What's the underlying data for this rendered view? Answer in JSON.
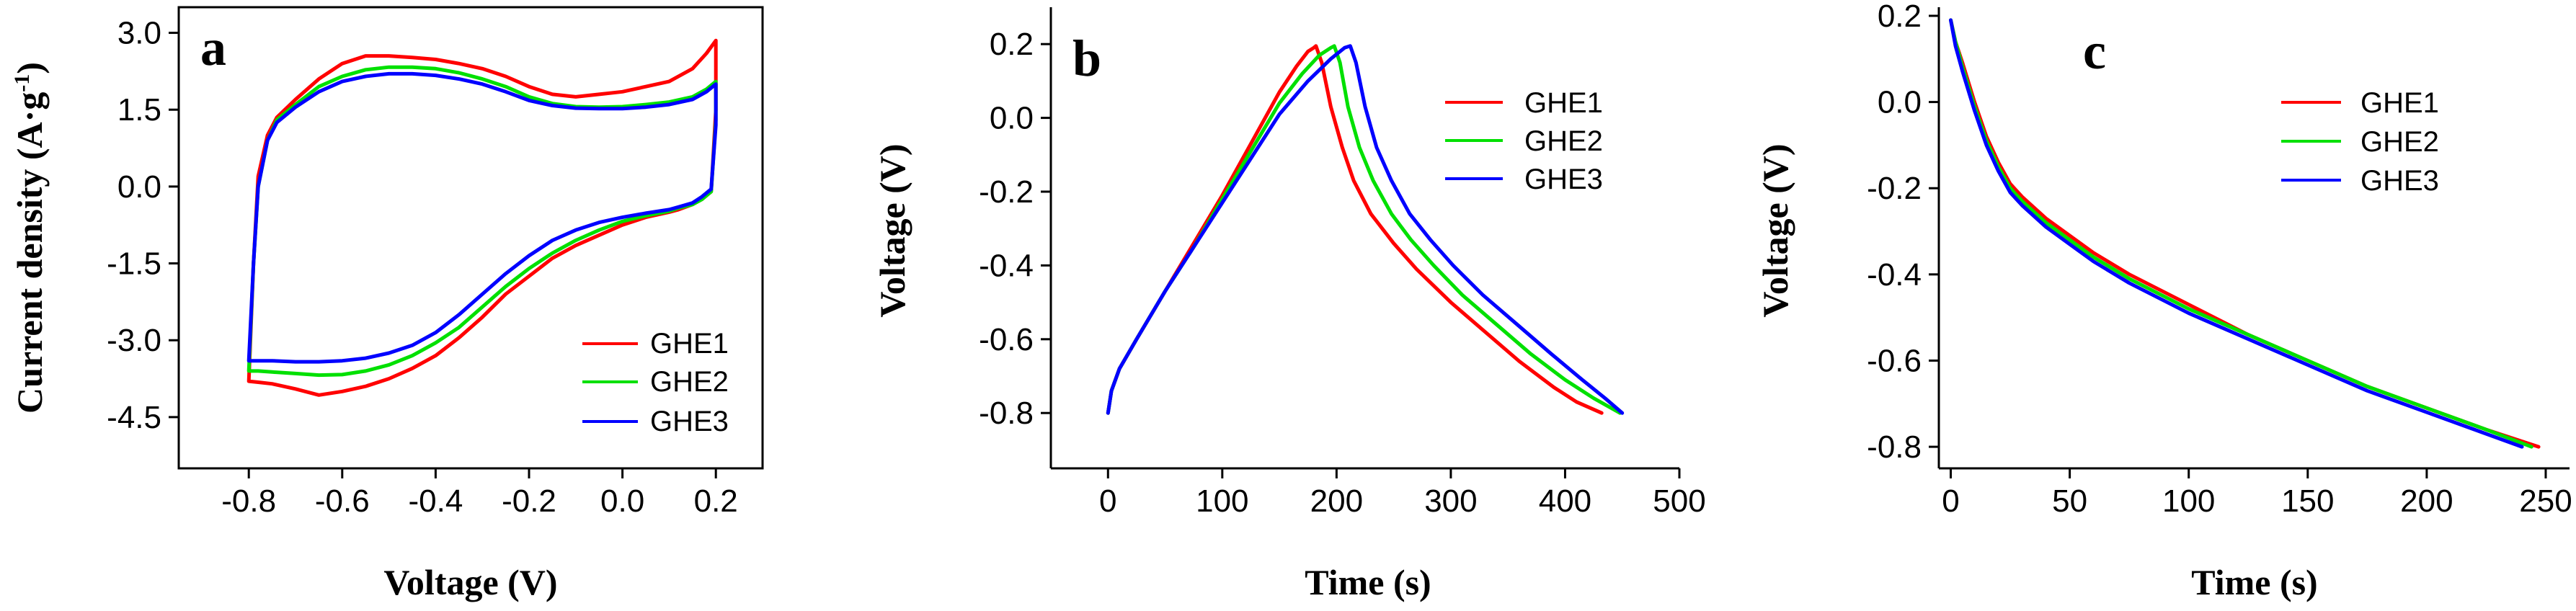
{
  "colors": {
    "GHE1": "#ff0000",
    "GHE2": "#00e000",
    "GHE3": "#0000ff",
    "axis": "#000000"
  },
  "chart_data": [
    {
      "id": "a",
      "type": "line",
      "panel_label": "a",
      "xlabel": "Voltage (V)",
      "ylabel_main": "Current density (A·g",
      "ylabel_sup": "-1",
      "ylabel_close": ")",
      "xlim": [
        -0.95,
        0.3
      ],
      "ylim": [
        -5.5,
        3.5
      ],
      "xticks": [
        -0.8,
        -0.6,
        -0.4,
        -0.2,
        0.0,
        0.2
      ],
      "xtick_labels": [
        "-0.8",
        "-0.6",
        "-0.4",
        "-0.2",
        "0.0",
        "0.2"
      ],
      "yticks": [
        3.0,
        1.5,
        0.0,
        -1.5,
        -3.0,
        -4.5
      ],
      "ytick_labels": [
        "3.0",
        "1.5",
        "0.0",
        "-1.5",
        "-3.0",
        "-4.5"
      ],
      "legend": [
        "GHE1",
        "GHE2",
        "GHE3"
      ],
      "legend_position": "bottom-right",
      "series": [
        {
          "name": "GHE1",
          "closed": true,
          "x": [
            -0.8,
            -0.79,
            -0.78,
            -0.76,
            -0.74,
            -0.7,
            -0.65,
            -0.6,
            -0.55,
            -0.5,
            -0.45,
            -0.4,
            -0.35,
            -0.3,
            -0.25,
            -0.2,
            -0.15,
            -0.1,
            -0.05,
            0.0,
            0.05,
            0.1,
            0.15,
            0.18,
            0.2,
            0.2,
            0.19,
            0.17,
            0.15,
            0.12,
            0.1,
            0.05,
            0.0,
            -0.05,
            -0.1,
            -0.15,
            -0.2,
            -0.25,
            -0.3,
            -0.35,
            -0.4,
            -0.45,
            -0.5,
            -0.55,
            -0.6,
            -0.65,
            -0.7,
            -0.75,
            -0.78,
            -0.8
          ],
          "y": [
            -3.8,
            -1.5,
            0.2,
            1.0,
            1.35,
            1.7,
            2.1,
            2.4,
            2.55,
            2.55,
            2.52,
            2.48,
            2.4,
            2.3,
            2.15,
            1.95,
            1.8,
            1.75,
            1.8,
            1.85,
            1.95,
            2.05,
            2.3,
            2.6,
            2.85,
            1.5,
            -0.1,
            -0.25,
            -0.35,
            -0.45,
            -0.5,
            -0.6,
            -0.75,
            -0.95,
            -1.15,
            -1.4,
            -1.75,
            -2.1,
            -2.55,
            -2.95,
            -3.3,
            -3.55,
            -3.75,
            -3.9,
            -4.0,
            -4.07,
            -3.95,
            -3.85,
            -3.82,
            -3.8
          ]
        },
        {
          "name": "GHE2",
          "closed": true,
          "x": [
            -0.8,
            -0.79,
            -0.78,
            -0.76,
            -0.74,
            -0.7,
            -0.65,
            -0.6,
            -0.55,
            -0.5,
            -0.45,
            -0.4,
            -0.35,
            -0.3,
            -0.25,
            -0.2,
            -0.15,
            -0.1,
            -0.05,
            0.0,
            0.05,
            0.1,
            0.15,
            0.18,
            0.2,
            0.2,
            0.19,
            0.17,
            0.15,
            0.12,
            0.1,
            0.05,
            0.0,
            -0.05,
            -0.1,
            -0.15,
            -0.2,
            -0.25,
            -0.3,
            -0.35,
            -0.4,
            -0.45,
            -0.5,
            -0.55,
            -0.6,
            -0.65,
            -0.7,
            -0.75,
            -0.78,
            -0.8
          ],
          "y": [
            -3.6,
            -1.5,
            0.0,
            0.9,
            1.3,
            1.6,
            1.95,
            2.15,
            2.28,
            2.33,
            2.33,
            2.3,
            2.22,
            2.1,
            1.95,
            1.75,
            1.62,
            1.56,
            1.55,
            1.56,
            1.6,
            1.65,
            1.75,
            1.9,
            2.05,
            1.3,
            -0.1,
            -0.25,
            -0.35,
            -0.42,
            -0.48,
            -0.57,
            -0.68,
            -0.85,
            -1.05,
            -1.3,
            -1.6,
            -1.95,
            -2.35,
            -2.75,
            -3.05,
            -3.3,
            -3.48,
            -3.6,
            -3.67,
            -3.68,
            -3.65,
            -3.62,
            -3.6,
            -3.6
          ]
        },
        {
          "name": "GHE3",
          "closed": true,
          "x": [
            -0.8,
            -0.79,
            -0.78,
            -0.76,
            -0.74,
            -0.7,
            -0.65,
            -0.6,
            -0.55,
            -0.5,
            -0.45,
            -0.4,
            -0.35,
            -0.3,
            -0.25,
            -0.2,
            -0.15,
            -0.1,
            -0.05,
            0.0,
            0.05,
            0.1,
            0.15,
            0.18,
            0.2,
            0.2,
            0.19,
            0.17,
            0.15,
            0.12,
            0.1,
            0.05,
            0.0,
            -0.05,
            -0.1,
            -0.15,
            -0.2,
            -0.25,
            -0.3,
            -0.35,
            -0.4,
            -0.45,
            -0.5,
            -0.55,
            -0.6,
            -0.65,
            -0.7,
            -0.75,
            -0.78,
            -0.8
          ],
          "y": [
            -3.4,
            -1.5,
            0.0,
            0.9,
            1.25,
            1.55,
            1.85,
            2.05,
            2.15,
            2.2,
            2.2,
            2.17,
            2.1,
            2.0,
            1.85,
            1.68,
            1.58,
            1.53,
            1.52,
            1.52,
            1.55,
            1.6,
            1.7,
            1.85,
            2.0,
            1.2,
            -0.05,
            -0.2,
            -0.32,
            -0.4,
            -0.45,
            -0.52,
            -0.6,
            -0.7,
            -0.85,
            -1.05,
            -1.35,
            -1.7,
            -2.1,
            -2.5,
            -2.85,
            -3.1,
            -3.25,
            -3.35,
            -3.4,
            -3.42,
            -3.42,
            -3.4,
            -3.4,
            -3.4
          ]
        }
      ]
    },
    {
      "id": "b",
      "type": "line",
      "panel_label": "b",
      "xlabel": "Time (s)",
      "ylabel": "Voltage (V)",
      "xlim": [
        -50,
        500
      ],
      "ylim": [
        -0.95,
        0.3
      ],
      "xticks": [
        0,
        100,
        200,
        300,
        400,
        500
      ],
      "xtick_labels": [
        "0",
        "100",
        "200",
        "300",
        "400",
        "500"
      ],
      "yticks": [
        0.2,
        0.0,
        -0.2,
        -0.4,
        -0.6,
        -0.8
      ],
      "ytick_labels": [
        "0.2",
        "0.0",
        "-0.2",
        "-0.4",
        "-0.6",
        "-0.8"
      ],
      "legend": [
        "GHE1",
        "GHE2",
        "GHE3"
      ],
      "legend_position": "top-right",
      "series": [
        {
          "name": "GHE1",
          "x": [
            0,
            3,
            10,
            25,
            50,
            75,
            100,
            125,
            150,
            165,
            175,
            180,
            182,
            187,
            195,
            205,
            215,
            230,
            250,
            270,
            300,
            330,
            360,
            390,
            410,
            432
          ],
          "y": [
            -0.8,
            -0.74,
            -0.68,
            -0.6,
            -0.47,
            -0.34,
            -0.21,
            -0.07,
            0.07,
            0.14,
            0.18,
            0.19,
            0.195,
            0.15,
            0.03,
            -0.08,
            -0.17,
            -0.26,
            -0.34,
            -0.41,
            -0.5,
            -0.58,
            -0.66,
            -0.73,
            -0.77,
            -0.8
          ]
        },
        {
          "name": "GHE2",
          "x": [
            0,
            3,
            10,
            25,
            50,
            75,
            100,
            125,
            150,
            170,
            185,
            195,
            198,
            203,
            210,
            220,
            232,
            248,
            265,
            285,
            310,
            340,
            370,
            400,
            425,
            448
          ],
          "y": [
            -0.8,
            -0.74,
            -0.68,
            -0.6,
            -0.47,
            -0.35,
            -0.22,
            -0.09,
            0.04,
            0.12,
            0.17,
            0.19,
            0.195,
            0.15,
            0.03,
            -0.08,
            -0.17,
            -0.26,
            -0.33,
            -0.4,
            -0.48,
            -0.56,
            -0.64,
            -0.71,
            -0.76,
            -0.8
          ]
        },
        {
          "name": "GHE3",
          "x": [
            0,
            3,
            10,
            25,
            50,
            75,
            100,
            125,
            150,
            175,
            195,
            207,
            212,
            217,
            225,
            235,
            248,
            264,
            282,
            302,
            328,
            358,
            388,
            415,
            435,
            450
          ],
          "y": [
            -0.8,
            -0.74,
            -0.68,
            -0.6,
            -0.47,
            -0.35,
            -0.23,
            -0.11,
            0.01,
            0.1,
            0.16,
            0.19,
            0.195,
            0.15,
            0.03,
            -0.08,
            -0.17,
            -0.26,
            -0.33,
            -0.4,
            -0.48,
            -0.56,
            -0.64,
            -0.71,
            -0.76,
            -0.8
          ]
        }
      ]
    },
    {
      "id": "c",
      "type": "line",
      "panel_label": "c",
      "xlabel": "Time (s)",
      "ylabel": "Voltage (V)",
      "xlim": [
        -5,
        260
      ],
      "ylim": [
        -0.85,
        0.22
      ],
      "xticks": [
        0,
        50,
        100,
        150,
        200,
        250
      ],
      "xtick_labels": [
        "0",
        "50",
        "100",
        "150",
        "200",
        "250"
      ],
      "yticks": [
        0.2,
        0.0,
        -0.2,
        -0.4,
        -0.6,
        -0.8
      ],
      "ytick_labels": [
        "0.2",
        "0.0",
        "-0.2",
        "-0.4",
        "-0.6",
        "-0.8"
      ],
      "legend": [
        "GHE1",
        "GHE2",
        "GHE3"
      ],
      "legend_position": "top-center",
      "series": [
        {
          "name": "GHE1",
          "x": [
            0,
            2,
            5,
            10,
            15,
            20,
            25,
            30,
            40,
            50,
            60,
            75,
            100,
            125,
            150,
            175,
            200,
            225,
            247
          ],
          "y": [
            0.19,
            0.14,
            0.09,
            0.0,
            -0.08,
            -0.14,
            -0.19,
            -0.22,
            -0.27,
            -0.31,
            -0.35,
            -0.4,
            -0.47,
            -0.54,
            -0.6,
            -0.66,
            -0.71,
            -0.76,
            -0.8
          ]
        },
        {
          "name": "GHE2",
          "x": [
            0,
            2,
            5,
            10,
            15,
            20,
            25,
            30,
            40,
            50,
            60,
            75,
            100,
            125,
            150,
            175,
            200,
            225,
            244
          ],
          "y": [
            0.19,
            0.14,
            0.08,
            -0.01,
            -0.09,
            -0.15,
            -0.2,
            -0.23,
            -0.28,
            -0.32,
            -0.36,
            -0.41,
            -0.48,
            -0.54,
            -0.6,
            -0.66,
            -0.71,
            -0.76,
            -0.8
          ]
        },
        {
          "name": "GHE3",
          "x": [
            0,
            2,
            5,
            10,
            15,
            20,
            25,
            30,
            40,
            50,
            60,
            75,
            100,
            125,
            150,
            175,
            200,
            225,
            240
          ],
          "y": [
            0.19,
            0.13,
            0.07,
            -0.02,
            -0.1,
            -0.16,
            -0.21,
            -0.24,
            -0.29,
            -0.33,
            -0.37,
            -0.42,
            -0.49,
            -0.55,
            -0.61,
            -0.67,
            -0.72,
            -0.77,
            -0.8
          ]
        }
      ]
    }
  ]
}
